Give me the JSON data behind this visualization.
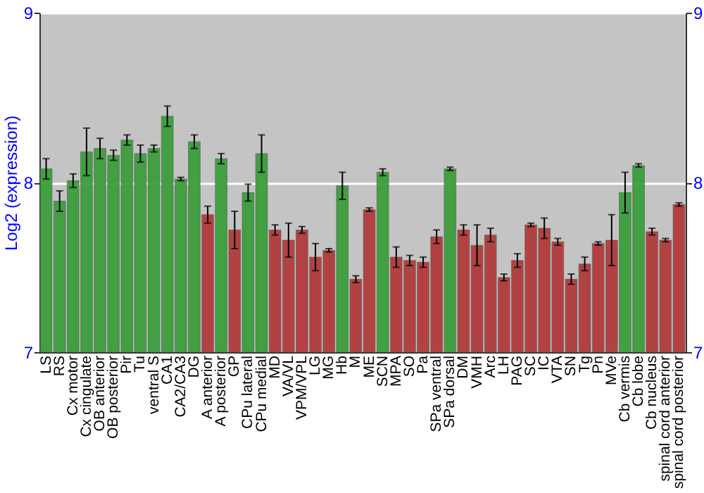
{
  "chart_data": {
    "type": "bar",
    "ylabel": "Log2 (expression)",
    "categories": [
      "LS",
      "RS",
      "Cx motor",
      "Cx cingulate",
      "OB anterior",
      "OB posterior",
      "Pir",
      "Tu",
      "ventral S",
      "CA1",
      "CA2/CA3",
      "DG",
      "A anterior",
      "A posterior",
      "GP",
      "CPu lateral",
      "CPu medial",
      "MD",
      "VA/VL",
      "VPM/VPL",
      "LG",
      "MG",
      "Hb",
      "M",
      "ME",
      "SCN",
      "MPA",
      "SO",
      "Pa",
      "SPa ventral",
      "SPa dorsal",
      "DM",
      "VMH",
      "Arc",
      "LH",
      "PAG",
      "SC",
      "IC",
      "VTA",
      "SN",
      "Tg",
      "Pn",
      "MVe",
      "Cb vermis",
      "Cb lobe",
      "Cb nucleus",
      "spinal cord anterior",
      "spinal cord posterior"
    ],
    "values": [
      8.08,
      7.89,
      8.01,
      8.18,
      8.2,
      8.16,
      8.25,
      8.17,
      8.2,
      8.39,
      8.02,
      8.24,
      7.81,
      8.14,
      7.72,
      7.94,
      8.17,
      7.72,
      7.66,
      7.72,
      7.56,
      7.6,
      7.98,
      7.43,
      7.84,
      8.06,
      7.56,
      7.54,
      7.53,
      7.68,
      8.08,
      7.72,
      7.63,
      7.69,
      7.44,
      7.54,
      7.75,
      7.73,
      7.65,
      7.43,
      7.52,
      7.64,
      7.66,
      7.94,
      8.1,
      7.71,
      7.66,
      7.87
    ],
    "errors": [
      0.06,
      0.06,
      0.04,
      0.14,
      0.06,
      0.03,
      0.03,
      0.05,
      0.02,
      0.06,
      0.01,
      0.04,
      0.05,
      0.03,
      0.11,
      0.05,
      0.11,
      0.03,
      0.1,
      0.02,
      0.08,
      0.01,
      0.08,
      0.02,
      0.01,
      0.02,
      0.06,
      0.03,
      0.03,
      0.04,
      0.01,
      0.03,
      0.12,
      0.04,
      0.02,
      0.04,
      0.01,
      0.06,
      0.02,
      0.03,
      0.04,
      0.01,
      0.15,
      0.12,
      0.01,
      0.02,
      0.01,
      0.01
    ],
    "colors": [
      "#3c9e3c",
      "#3c9e3c",
      "#3c9e3c",
      "#3c9e3c",
      "#3c9e3c",
      "#3c9e3c",
      "#3c9e3c",
      "#3c9e3c",
      "#3c9e3c",
      "#3c9e3c",
      "#3c9e3c",
      "#3c9e3c",
      "#b23c3c",
      "#3c9e3c",
      "#b23c3c",
      "#3c9e3c",
      "#3c9e3c",
      "#b23c3c",
      "#b23c3c",
      "#b23c3c",
      "#b23c3c",
      "#b23c3c",
      "#3c9e3c",
      "#b23c3c",
      "#b23c3c",
      "#3c9e3c",
      "#b23c3c",
      "#b23c3c",
      "#b23c3c",
      "#b23c3c",
      "#3c9e3c",
      "#b23c3c",
      "#b23c3c",
      "#b23c3c",
      "#b23c3c",
      "#b23c3c",
      "#b23c3c",
      "#b23c3c",
      "#b23c3c",
      "#b23c3c",
      "#b23c3c",
      "#b23c3c",
      "#b23c3c",
      "#3c9e3c",
      "#3c9e3c",
      "#b23c3c",
      "#b23c3c",
      "#b23c3c"
    ],
    "ylim": [
      7,
      9
    ],
    "yticks": [
      7,
      8,
      9
    ],
    "y2lim": [
      7,
      9
    ],
    "y2ticks": [
      7,
      8,
      9
    ],
    "grid": "y"
  }
}
